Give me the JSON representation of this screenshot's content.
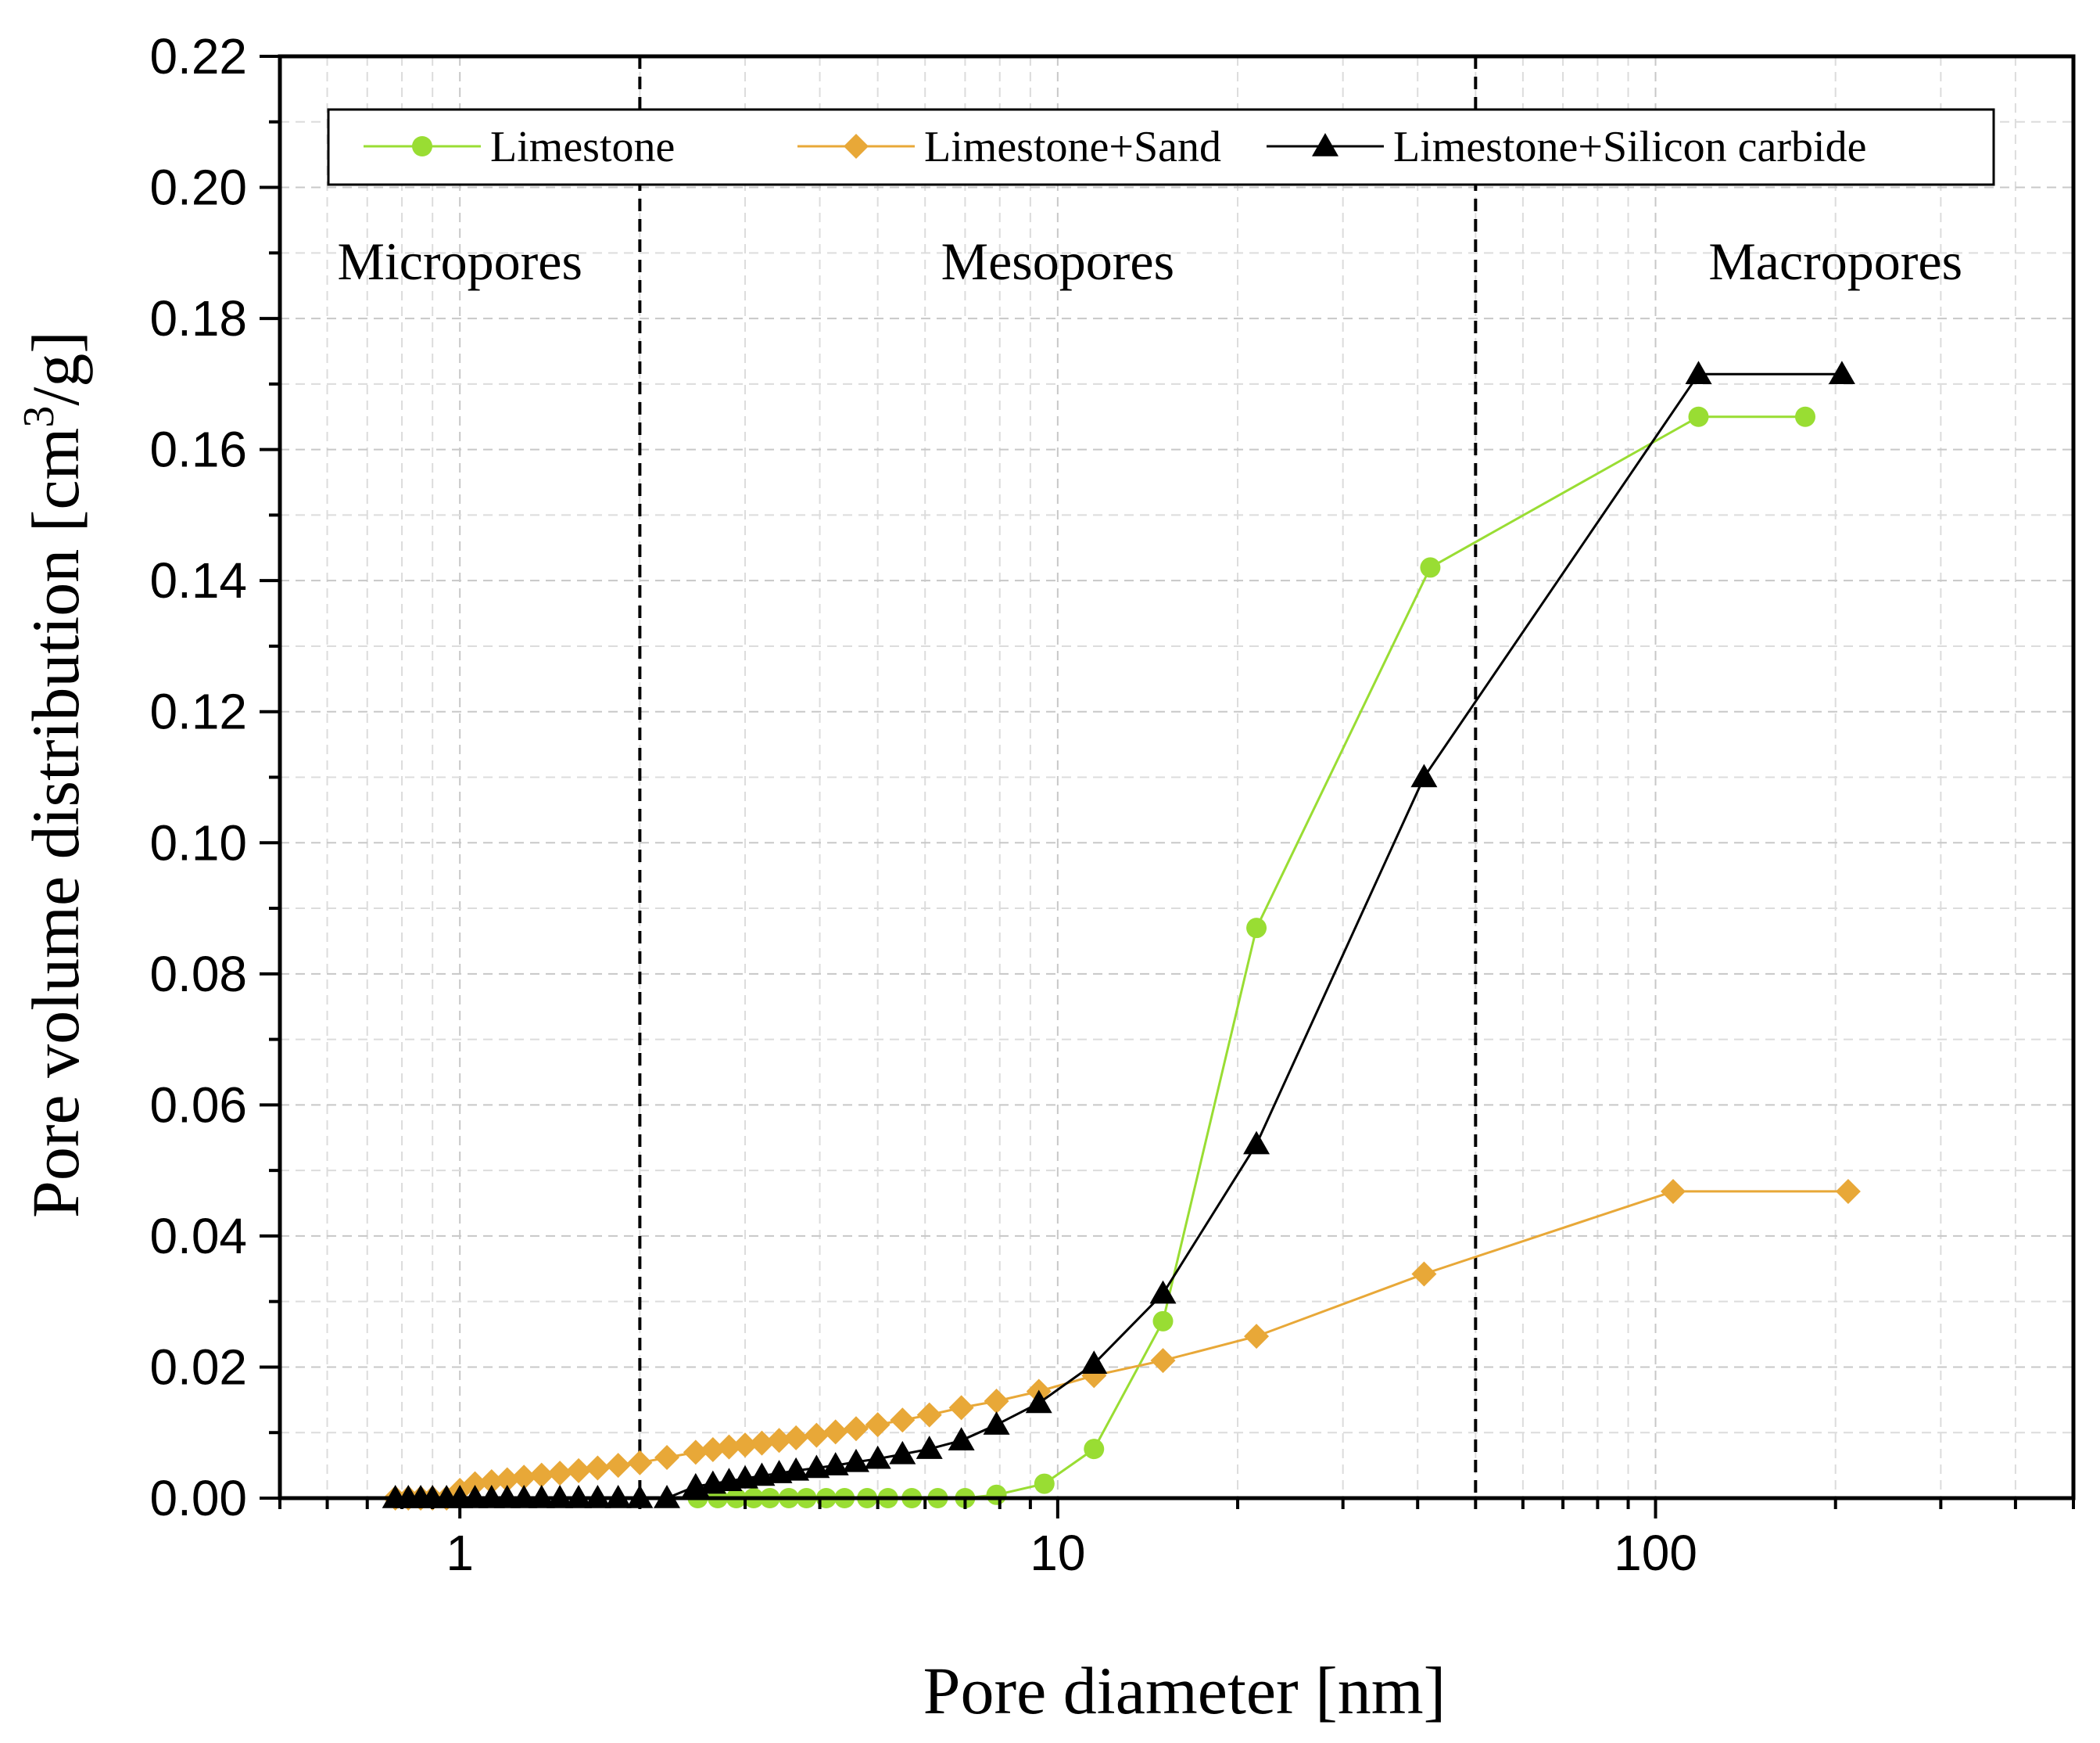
{
  "chart_data": {
    "type": "line",
    "xscale": "log",
    "xlim": [
      0.5,
      500
    ],
    "ylim": [
      0,
      0.22
    ],
    "xlabel": "Pore diameter [nm]",
    "ylabel_main": "Pore volume distribution [cm",
    "ylabel_sup": "3",
    "ylabel_tail": "/g]",
    "x_ticks": [
      {
        "value": 1,
        "label": "1"
      },
      {
        "value": 10,
        "label": "10"
      },
      {
        "value": 100,
        "label": "100"
      }
    ],
    "y_ticks": [
      {
        "value": 0,
        "label": "0.00"
      },
      {
        "value": 0.02,
        "label": "0.02"
      },
      {
        "value": 0.04,
        "label": "0.04"
      },
      {
        "value": 0.06,
        "label": "0.06"
      },
      {
        "value": 0.08,
        "label": "0.08"
      },
      {
        "value": 0.1,
        "label": "0.10"
      },
      {
        "value": 0.12,
        "label": "0.12"
      },
      {
        "value": 0.14,
        "label": "0.14"
      },
      {
        "value": 0.16,
        "label": "0.16"
      },
      {
        "value": 0.18,
        "label": "0.18"
      },
      {
        "value": 0.2,
        "label": "0.20"
      },
      {
        "value": 0.22,
        "label": "0.22"
      }
    ],
    "grid": true,
    "region_boundaries": [
      2,
      50
    ],
    "regions": [
      {
        "label": "Micropores",
        "x": 1.0,
        "y": 0.186
      },
      {
        "label": "Mesopores",
        "x": 10.0,
        "y": 0.186
      },
      {
        "label": "Macropores",
        "x": 200,
        "y": 0.186
      }
    ],
    "legend_position": "top",
    "series": [
      {
        "name": "Limestone",
        "color": "#99dd33",
        "marker": "circle",
        "x": [
          2.5,
          2.7,
          2.9,
          3.1,
          3.3,
          3.55,
          3.8,
          4.1,
          4.4,
          4.8,
          5.2,
          5.7,
          6.3,
          7.0,
          7.9,
          9.5,
          11.5,
          15.0,
          21.5,
          42.0,
          118.0,
          178.0
        ],
        "y": [
          0.0,
          0.0,
          0.0,
          0.0,
          0.0,
          0.0,
          0.0,
          0.0,
          0.0,
          0.0,
          0.0,
          0.0,
          0.0,
          0.0,
          0.0005,
          0.0022,
          0.0075,
          0.027,
          0.087,
          0.142,
          0.165,
          0.165
        ]
      },
      {
        "name": "Limestone+Sand",
        "color": "#e8a838",
        "marker": "diamond",
        "x": [
          0.78,
          0.82,
          0.86,
          0.9,
          0.95,
          1.0,
          1.06,
          1.13,
          1.2,
          1.28,
          1.37,
          1.47,
          1.58,
          1.7,
          1.84,
          2.0,
          2.22,
          2.48,
          2.65,
          2.82,
          3.0,
          3.2,
          3.42,
          3.65,
          3.95,
          4.25,
          4.6,
          5.0,
          5.5,
          6.1,
          6.9,
          7.9,
          9.3,
          11.5,
          15.0,
          21.5,
          41.0,
          107.0,
          210.0
        ],
        "y": [
          0.0,
          0.0,
          0.0,
          0.0,
          0.0,
          0.0012,
          0.0022,
          0.0025,
          0.0028,
          0.0032,
          0.0035,
          0.0038,
          0.0042,
          0.0046,
          0.005,
          0.0054,
          0.0062,
          0.007,
          0.0074,
          0.0078,
          0.0081,
          0.0084,
          0.0088,
          0.0092,
          0.0096,
          0.0101,
          0.0106,
          0.0112,
          0.0119,
          0.0127,
          0.0138,
          0.0148,
          0.0163,
          0.0187,
          0.021,
          0.0247,
          0.0342,
          0.0468,
          0.0468
        ]
      },
      {
        "name": "Limestone+Silicon carbide",
        "color": "#000000",
        "marker": "triangle",
        "x": [
          0.78,
          0.82,
          0.86,
          0.9,
          0.95,
          1.0,
          1.06,
          1.13,
          1.2,
          1.28,
          1.37,
          1.47,
          1.58,
          1.7,
          1.84,
          2.0,
          2.22,
          2.48,
          2.65,
          2.82,
          3.0,
          3.2,
          3.42,
          3.65,
          3.95,
          4.25,
          4.6,
          5.0,
          5.5,
          6.1,
          6.9,
          7.9,
          9.3,
          11.5,
          15.0,
          21.5,
          41.0,
          118.0,
          205.0
        ],
        "y": [
          0.0,
          0.0,
          0.0,
          0.0,
          0.0,
          0.0,
          0.0,
          0.0,
          0.0,
          0.0,
          0.0,
          0.0,
          0.0,
          0.0,
          0.0,
          0.0,
          0.0,
          0.0018,
          0.0022,
          0.0026,
          0.003,
          0.0034,
          0.0038,
          0.0042,
          0.0046,
          0.005,
          0.0055,
          0.006,
          0.0067,
          0.0075,
          0.0088,
          0.0112,
          0.0145,
          0.0205,
          0.0312,
          0.054,
          0.11,
          0.1715,
          0.1715
        ]
      }
    ]
  }
}
